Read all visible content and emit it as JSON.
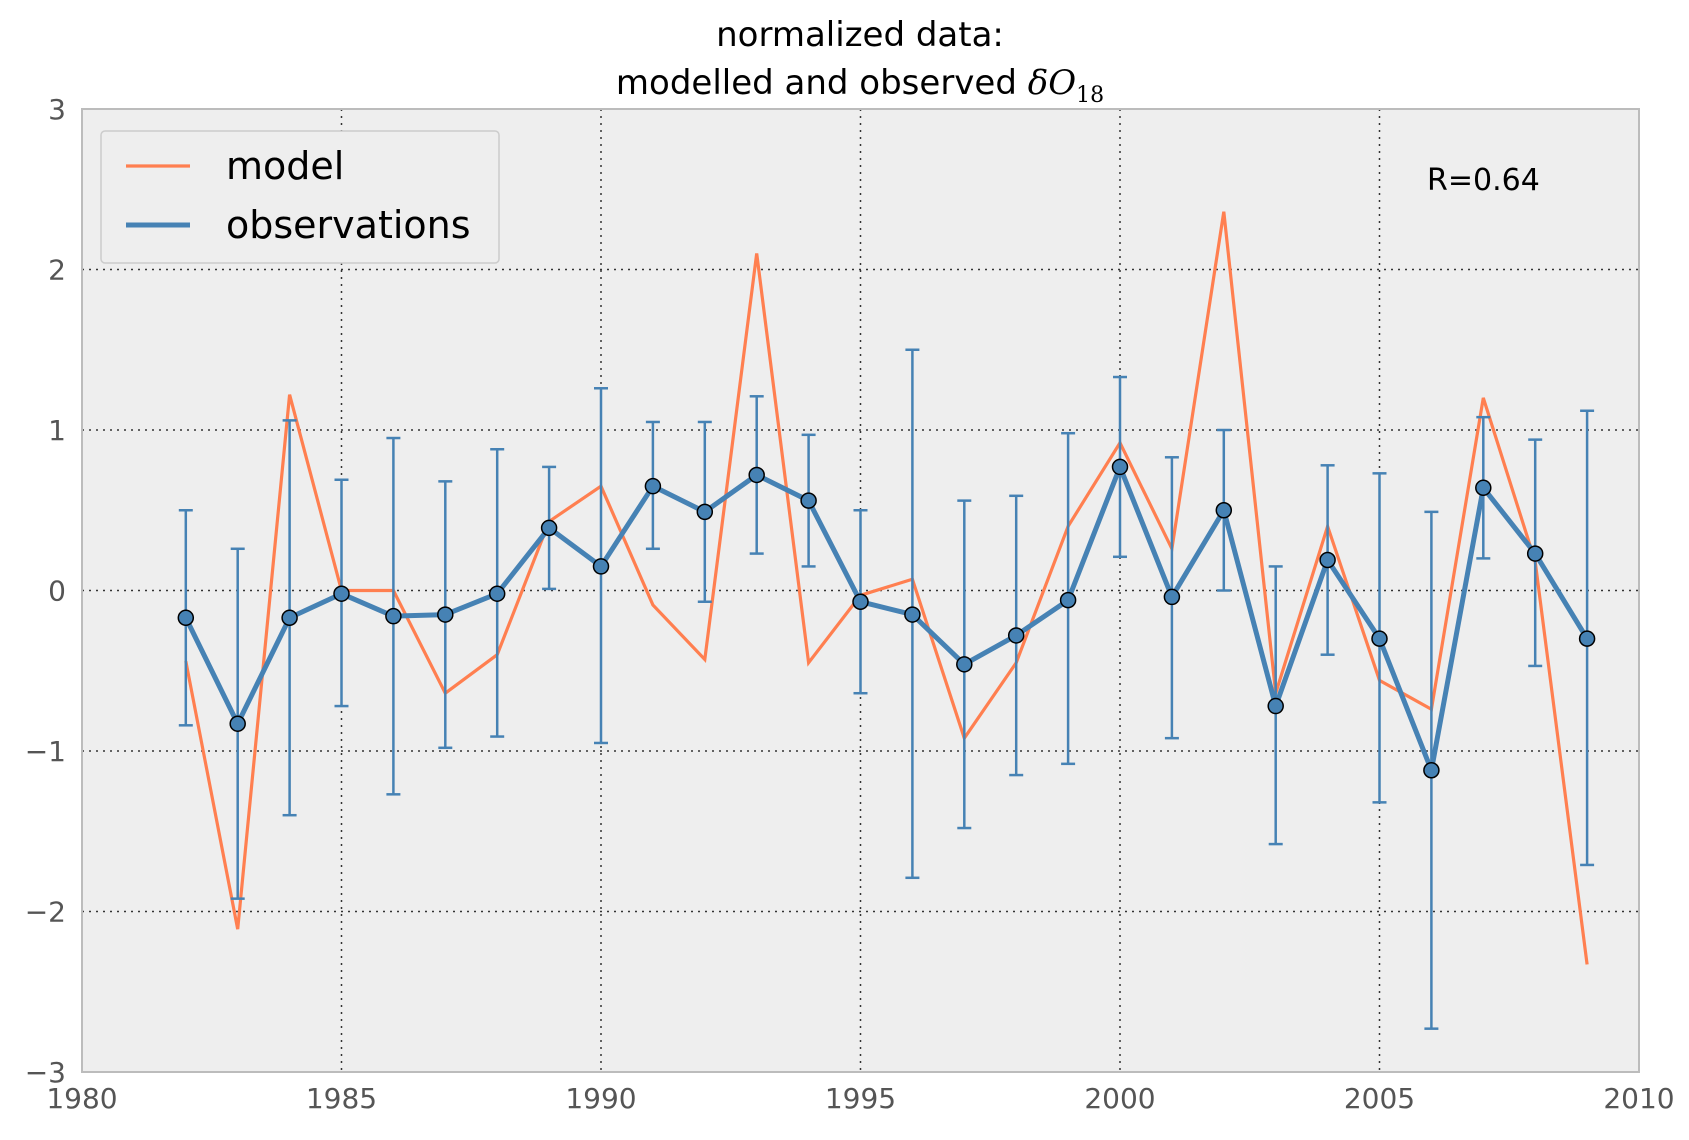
{
  "chart_data": {
    "type": "line",
    "title_line1": "normalized data:",
    "title_line2_text": "modelled and observed ",
    "title_symbol": "δO",
    "title_subscript": "18",
    "xlabel": "",
    "ylabel": "",
    "xlim": [
      1980,
      2010
    ],
    "ylim": [
      -3,
      3
    ],
    "xticks": [
      1980,
      1985,
      1990,
      1995,
      2000,
      2005,
      2010
    ],
    "yticks": [
      -3,
      -2,
      -1,
      0,
      1,
      2,
      3
    ],
    "ytick_labels": [
      "−3",
      "−2",
      "−1",
      "0",
      "1",
      "2",
      "3"
    ],
    "grid": true,
    "legend_position": "top-left",
    "annotation": "R=0.64",
    "x": [
      1982,
      1983,
      1984,
      1985,
      1986,
      1987,
      1988,
      1989,
      1990,
      1991,
      1992,
      1993,
      1994,
      1995,
      1996,
      1997,
      1998,
      1999,
      2000,
      2001,
      2002,
      2003,
      2004,
      2005,
      2006,
      2007,
      2008,
      2009
    ],
    "series": [
      {
        "name": "model",
        "color": "#ff7f50",
        "values": [
          -0.44,
          -2.11,
          1.22,
          0.0,
          0.0,
          -0.64,
          -0.4,
          0.43,
          0.65,
          -0.09,
          -0.43,
          2.1,
          -0.45,
          -0.03,
          0.07,
          -0.92,
          -0.45,
          0.4,
          0.92,
          0.26,
          2.36,
          -0.64,
          0.4,
          -0.56,
          -0.74,
          1.2,
          0.18,
          -2.33
        ]
      },
      {
        "name": "observations",
        "color": "#4682b4",
        "values": [
          -0.17,
          -0.83,
          -0.17,
          -0.02,
          -0.16,
          -0.15,
          -0.02,
          0.39,
          0.15,
          0.65,
          0.49,
          0.72,
          0.56,
          -0.07,
          -0.15,
          -0.46,
          -0.28,
          -0.06,
          0.77,
          -0.04,
          0.5,
          -0.72,
          0.19,
          -0.3,
          -1.12,
          0.64,
          0.23,
          -0.3
        ],
        "error_lower": [
          -0.84,
          -1.92,
          -1.4,
          -0.72,
          -1.27,
          -0.98,
          -0.91,
          0.01,
          -0.95,
          0.26,
          -0.07,
          0.23,
          0.15,
          -0.64,
          -1.79,
          -1.48,
          -1.15,
          -1.08,
          0.21,
          -0.92,
          0.0,
          -1.58,
          -0.4,
          -1.32,
          -2.73,
          0.2,
          -0.47,
          -1.71
        ],
        "error_upper": [
          0.5,
          0.26,
          1.06,
          0.69,
          0.95,
          0.68,
          0.88,
          0.77,
          1.26,
          1.05,
          1.05,
          1.21,
          0.97,
          0.5,
          1.5,
          0.56,
          0.59,
          0.98,
          1.33,
          0.83,
          1.0,
          0.15,
          0.78,
          0.73,
          0.49,
          1.08,
          0.94,
          1.12
        ]
      }
    ],
    "colors": {
      "plot_background": "#eeeeee",
      "grid": "#333333",
      "frame": "#bcbcbc",
      "marker_edge": "#000000"
    }
  }
}
